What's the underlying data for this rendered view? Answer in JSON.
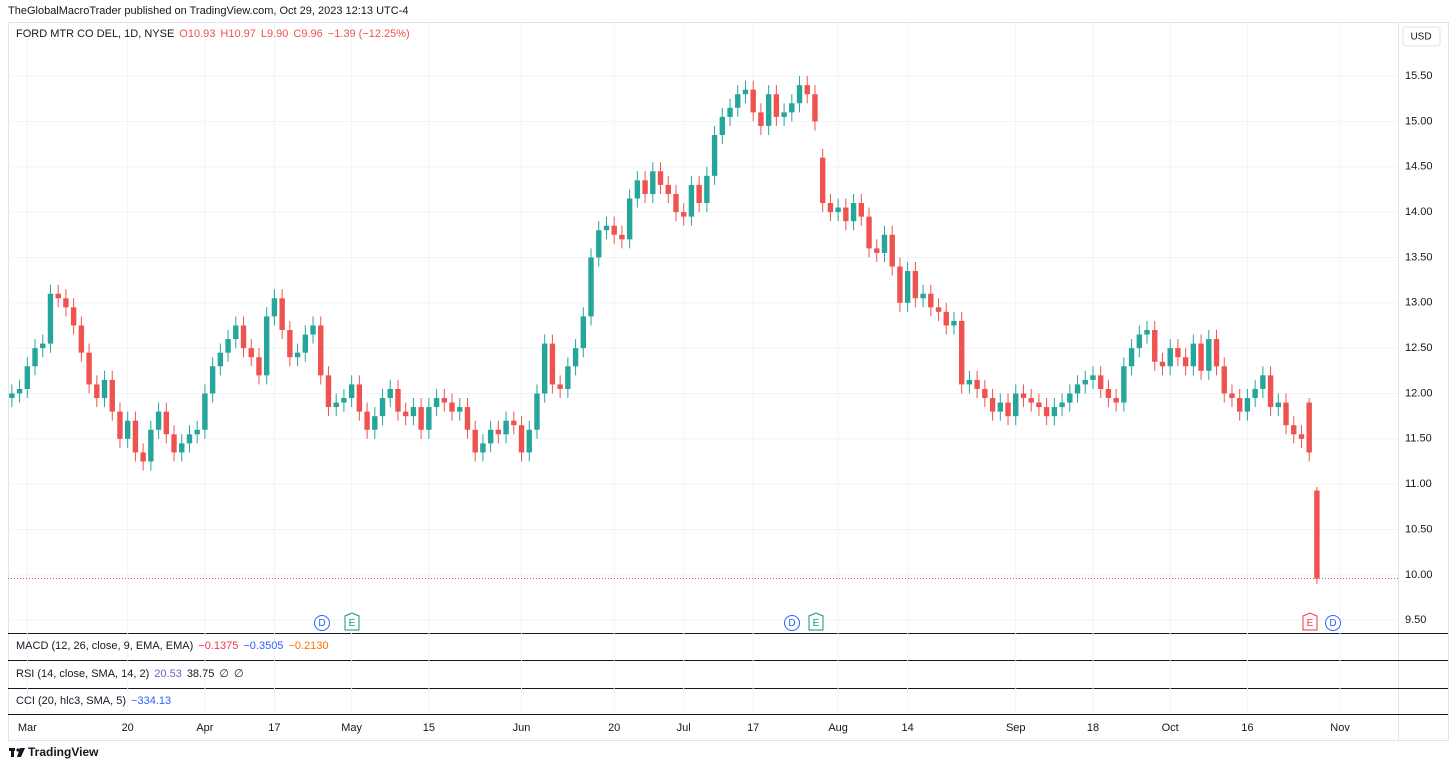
{
  "header": {
    "publisher": "TheGlobalMacroTrader published on TradingView.com, Oct 29, 2023 12:13 UTC-4"
  },
  "chart_data": {
    "type": "candlestick",
    "title": "FORD MTR CO DEL, 1D, NYSE",
    "ohlc_labels": [
      "O10.93",
      "H10.97",
      "L9.90",
      "C9.96",
      "−1.39 (−12.25%)"
    ],
    "currency": "USD",
    "up_color": "#26a69a",
    "down_color": "#ef5350",
    "grid": true,
    "open": [
      11.95,
      12.0,
      12.05,
      12.3,
      12.5,
      12.55,
      13.1,
      13.05,
      12.95,
      12.75,
      12.45,
      12.1,
      11.95,
      12.15,
      11.8,
      11.5,
      11.7,
      11.35,
      11.25,
      11.6,
      11.8,
      11.55,
      11.35,
      11.45,
      11.55,
      11.6,
      12.0,
      12.3,
      12.45,
      12.6,
      12.75,
      12.5,
      12.4,
      12.2,
      12.85,
      13.05,
      12.7,
      12.4,
      12.45,
      12.65,
      12.75,
      12.2,
      11.85,
      11.9,
      11.95,
      12.1,
      11.8,
      11.6,
      11.75,
      11.95,
      12.05,
      11.8,
      11.75,
      11.85,
      11.6,
      11.85,
      11.95,
      11.9,
      11.8,
      11.85,
      11.6,
      11.35,
      11.45,
      11.6,
      11.55,
      11.7,
      11.65,
      11.35,
      11.6,
      12.0,
      12.55,
      12.1,
      12.05,
      12.3,
      12.5,
      12.85,
      13.5,
      13.8,
      13.85,
      13.75,
      13.7,
      14.15,
      14.35,
      14.2,
      14.45,
      14.3,
      14.2,
      14.0,
      13.95,
      14.3,
      14.1,
      14.4,
      14.85,
      15.05,
      15.15,
      15.3,
      15.35,
      15.1,
      14.95,
      15.3,
      15.05,
      15.1,
      15.2,
      15.4,
      15.3,
      14.6,
      14.1,
      14.0,
      14.05,
      13.9,
      14.1,
      13.95,
      13.6,
      13.55,
      13.75,
      13.4,
      13.0,
      13.35,
      13.05,
      13.1,
      12.95,
      12.9,
      12.75,
      12.8,
      12.1,
      12.15,
      12.05,
      11.95,
      11.8,
      11.9,
      11.75,
      12.0,
      11.95,
      11.9,
      11.85,
      11.75,
      11.85,
      11.9,
      12.0,
      12.1,
      12.15,
      12.2,
      12.05,
      11.95,
      11.9,
      12.3,
      12.5,
      12.65,
      12.7,
      12.35,
      12.3,
      12.5,
      12.4,
      12.3,
      12.55,
      12.25,
      12.6,
      12.3,
      12.0,
      11.95,
      11.8,
      11.95,
      12.05,
      12.2,
      11.85,
      11.9,
      11.65,
      11.55,
      11.9,
      10.93
    ],
    "high": [
      12.1,
      12.15,
      12.4,
      12.6,
      12.65,
      13.2,
      13.2,
      13.15,
      13.05,
      12.85,
      12.55,
      12.2,
      12.25,
      12.25,
      11.9,
      11.8,
      11.8,
      11.45,
      11.7,
      11.9,
      11.9,
      11.65,
      11.55,
      11.65,
      11.7,
      12.1,
      12.4,
      12.55,
      12.7,
      12.85,
      12.85,
      12.6,
      12.5,
      12.95,
      13.15,
      13.15,
      12.8,
      12.55,
      12.75,
      12.85,
      12.85,
      12.3,
      12.0,
      12.05,
      12.2,
      12.2,
      11.9,
      11.85,
      12.05,
      12.15,
      12.15,
      11.9,
      11.95,
      11.95,
      11.95,
      12.05,
      12.05,
      12.0,
      11.95,
      11.95,
      11.7,
      11.55,
      11.7,
      11.7,
      11.8,
      11.8,
      11.75,
      11.7,
      12.1,
      12.65,
      12.65,
      12.2,
      12.4,
      12.6,
      12.95,
      13.6,
      13.9,
      13.95,
      13.95,
      13.85,
      14.25,
      14.45,
      14.45,
      14.55,
      14.55,
      14.4,
      14.3,
      14.1,
      14.4,
      14.4,
      14.5,
      14.95,
      15.15,
      15.25,
      15.4,
      15.45,
      15.45,
      15.2,
      15.4,
      15.4,
      15.2,
      15.3,
      15.5,
      15.5,
      15.4,
      14.7,
      14.2,
      14.15,
      14.15,
      14.2,
      14.2,
      14.05,
      13.7,
      13.85,
      13.85,
      13.5,
      13.45,
      13.45,
      13.2,
      13.2,
      13.05,
      13.0,
      12.9,
      12.9,
      12.25,
      12.25,
      12.15,
      12.05,
      12.0,
      12.0,
      12.1,
      12.1,
      12.05,
      12.0,
      11.95,
      11.95,
      12.0,
      12.1,
      12.2,
      12.25,
      12.3,
      12.3,
      12.15,
      12.05,
      12.4,
      12.6,
      12.75,
      12.8,
      12.8,
      12.45,
      12.6,
      12.6,
      12.5,
      12.65,
      12.65,
      12.7,
      12.7,
      12.4,
      12.1,
      12.05,
      12.05,
      12.15,
      12.3,
      12.3,
      12.0,
      12.0,
      11.75,
      11.65,
      11.95,
      10.97
    ],
    "low": [
      11.85,
      11.9,
      11.95,
      12.2,
      12.4,
      12.45,
      12.95,
      12.85,
      12.65,
      12.35,
      12.0,
      11.85,
      11.85,
      11.7,
      11.4,
      11.4,
      11.25,
      11.15,
      11.15,
      11.5,
      11.45,
      11.25,
      11.25,
      11.35,
      11.45,
      11.5,
      11.9,
      12.2,
      12.35,
      12.5,
      12.4,
      12.3,
      12.1,
      12.1,
      12.75,
      12.6,
      12.3,
      12.3,
      12.35,
      12.55,
      12.1,
      11.75,
      11.75,
      11.8,
      11.85,
      11.7,
      11.5,
      11.5,
      11.65,
      11.85,
      11.7,
      11.65,
      11.65,
      11.5,
      11.5,
      11.75,
      11.8,
      11.7,
      11.7,
      11.5,
      11.25,
      11.25,
      11.35,
      11.45,
      11.45,
      11.55,
      11.25,
      11.25,
      11.5,
      11.9,
      12.0,
      11.95,
      11.95,
      12.2,
      12.4,
      12.75,
      13.4,
      13.7,
      13.65,
      13.6,
      13.6,
      14.05,
      14.1,
      14.1,
      14.2,
      14.1,
      13.9,
      13.85,
      13.85,
      14.0,
      14.0,
      14.3,
      14.75,
      14.95,
      15.05,
      15.2,
      15.0,
      14.85,
      14.85,
      14.95,
      14.95,
      15.0,
      15.1,
      15.2,
      14.9,
      14.0,
      13.9,
      13.9,
      13.8,
      13.8,
      13.85,
      13.5,
      13.45,
      13.45,
      13.3,
      12.9,
      12.9,
      12.95,
      12.95,
      12.85,
      12.8,
      12.65,
      12.65,
      12.0,
      12.0,
      11.95,
      11.85,
      11.7,
      11.7,
      11.65,
      11.65,
      11.85,
      11.8,
      11.75,
      11.65,
      11.65,
      11.75,
      11.8,
      11.9,
      12.0,
      12.05,
      11.95,
      11.85,
      11.8,
      11.8,
      12.2,
      12.4,
      12.55,
      12.25,
      12.2,
      12.2,
      12.3,
      12.2,
      12.2,
      12.15,
      12.15,
      12.2,
      11.9,
      11.85,
      11.7,
      11.7,
      11.85,
      11.95,
      11.75,
      11.75,
      11.55,
      11.45,
      11.4,
      11.25,
      9.9
    ],
    "close": [
      12.0,
      12.05,
      12.3,
      12.5,
      12.55,
      13.1,
      13.05,
      12.95,
      12.75,
      12.45,
      12.1,
      11.95,
      12.15,
      11.8,
      11.5,
      11.7,
      11.35,
      11.25,
      11.6,
      11.8,
      11.55,
      11.35,
      11.45,
      11.55,
      11.6,
      12.0,
      12.3,
      12.45,
      12.6,
      12.75,
      12.5,
      12.4,
      12.2,
      12.85,
      13.05,
      12.7,
      12.4,
      12.45,
      12.65,
      12.75,
      12.2,
      11.85,
      11.9,
      11.95,
      12.1,
      11.8,
      11.6,
      11.75,
      11.95,
      12.05,
      11.8,
      11.75,
      11.85,
      11.6,
      11.85,
      11.95,
      11.9,
      11.8,
      11.85,
      11.6,
      11.35,
      11.45,
      11.6,
      11.55,
      11.7,
      11.65,
      11.35,
      11.6,
      12.0,
      12.55,
      12.1,
      12.05,
      12.3,
      12.5,
      12.85,
      13.5,
      13.8,
      13.85,
      13.75,
      13.7,
      14.15,
      14.35,
      14.2,
      14.45,
      14.3,
      14.2,
      14.0,
      13.95,
      14.3,
      14.1,
      14.4,
      14.85,
      15.05,
      15.15,
      15.3,
      15.35,
      15.1,
      14.95,
      15.3,
      15.05,
      15.1,
      15.2,
      15.4,
      15.3,
      15.0,
      14.1,
      14.0,
      14.05,
      13.9,
      14.1,
      13.95,
      13.6,
      13.55,
      13.75,
      13.4,
      13.0,
      13.35,
      13.05,
      13.1,
      12.95,
      12.9,
      12.75,
      12.8,
      12.1,
      12.15,
      12.05,
      11.95,
      11.8,
      11.9,
      11.75,
      12.0,
      11.95,
      11.9,
      11.85,
      11.75,
      11.85,
      11.9,
      12.0,
      12.1,
      12.15,
      12.2,
      12.05,
      11.95,
      11.9,
      12.3,
      12.5,
      12.65,
      12.7,
      12.35,
      12.3,
      12.5,
      12.4,
      12.3,
      12.55,
      12.25,
      12.6,
      12.3,
      12.0,
      11.95,
      11.8,
      11.95,
      12.05,
      12.2,
      11.85,
      11.9,
      11.65,
      11.55,
      11.5,
      11.35,
      9.96
    ],
    "xlim": [
      -0.5,
      179.5
    ],
    "xticks": [
      {
        "value": 2,
        "label": "Mar"
      },
      {
        "value": 15,
        "label": "20"
      },
      {
        "value": 25,
        "label": "Apr"
      },
      {
        "value": 34,
        "label": "17"
      },
      {
        "value": 44,
        "label": "May"
      },
      {
        "value": 54,
        "label": "15"
      },
      {
        "value": 66,
        "label": "Jun"
      },
      {
        "value": 78,
        "label": "20"
      },
      {
        "value": 87,
        "label": "Jul"
      },
      {
        "value": 96,
        "label": "17"
      },
      {
        "value": 107,
        "label": "Aug"
      },
      {
        "value": 116,
        "label": "14"
      },
      {
        "value": 130,
        "label": "Sep"
      },
      {
        "value": 140,
        "label": "18"
      },
      {
        "value": 150,
        "label": "Oct"
      },
      {
        "value": 160,
        "label": "16"
      },
      {
        "value": 172,
        "label": "Nov"
      }
    ],
    "ylim": [
      9.37,
      16.03
    ],
    "yticks": [
      {
        "value": 9.5,
        "label": "9.50"
      },
      {
        "value": 10,
        "label": "10.00"
      },
      {
        "value": 10.5,
        "label": "10.50"
      },
      {
        "value": 11,
        "label": "11.00"
      },
      {
        "value": 11.5,
        "label": "11.50"
      },
      {
        "value": 12,
        "label": "12.00"
      },
      {
        "value": 12.5,
        "label": "12.50"
      },
      {
        "value": 13,
        "label": "13.00"
      },
      {
        "value": 13.5,
        "label": "13.50"
      },
      {
        "value": 14,
        "label": "14.00"
      },
      {
        "value": 14.5,
        "label": "14.50"
      },
      {
        "value": 15,
        "label": "15.00"
      },
      {
        "value": 15.5,
        "label": "15.50"
      }
    ]
  },
  "events": [
    "D",
    "E",
    "D",
    "E",
    "E",
    "D"
  ],
  "indicators": [
    {
      "name": "MACD (12, 26, close, 9, EMA, EMA)",
      "values": [
        "−0.1375",
        "−0.3505",
        "−0.2130"
      ]
    },
    {
      "name": "RSI (14, close, SMA, 14, 2)",
      "values": [
        "20.53",
        "38.75",
        "∅",
        "∅"
      ]
    },
    {
      "name": "CCI (20, hlc3, SMA, 5)",
      "values": [
        "−334.13"
      ]
    }
  ],
  "footer": {
    "brand": "TradingView"
  }
}
